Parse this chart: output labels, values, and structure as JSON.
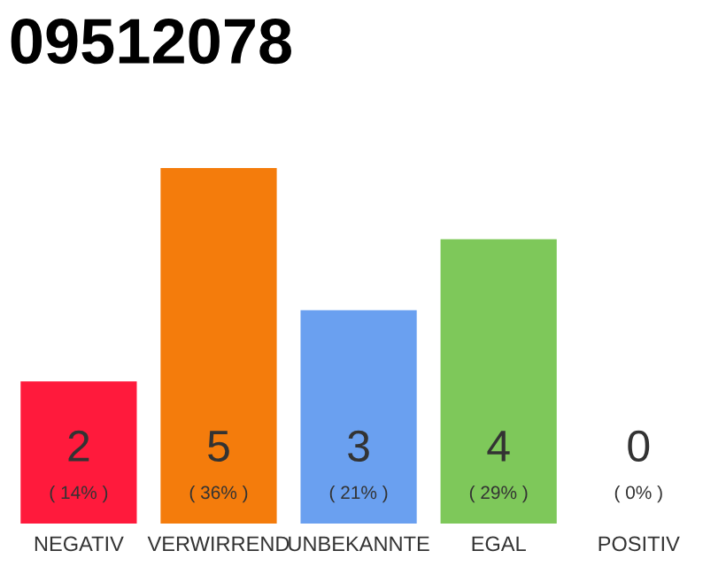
{
  "chart_data": {
    "type": "bar",
    "title": "09512078",
    "categories": [
      "NEGATIV",
      "VERWIRREND",
      "UNBEKANNTE",
      "EGAL",
      "POSITIV"
    ],
    "values": [
      2,
      5,
      3,
      4,
      0
    ],
    "colors": [
      "#ff1a3c",
      "#f47c0c",
      "#6aa0f0",
      "#7ec85a",
      "#bbbbbb"
    ],
    "ylim": [
      0,
      5
    ],
    "data_labels": true,
    "grid": false,
    "legend": false,
    "annotations": [
      "( 14% )",
      "( 36% )",
      "( 21% )",
      "( 29% )",
      "( 0% )"
    ]
  }
}
